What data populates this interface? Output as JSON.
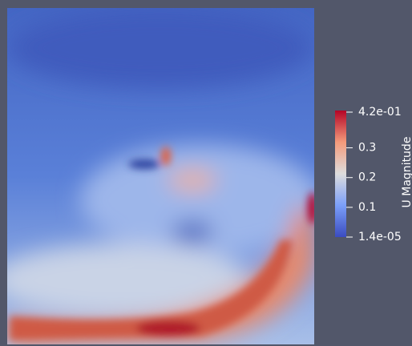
{
  "colorbar": {
    "title": "U Magnitude",
    "range": [
      1.4e-05,
      0.42
    ],
    "ticks": [
      {
        "value": 0.42,
        "label": "4.2e-01"
      },
      0.3,
      0.2,
      0.1,
      {
        "value": 1.4e-05,
        "label": "1.4e-05"
      }
    ]
  }
}
